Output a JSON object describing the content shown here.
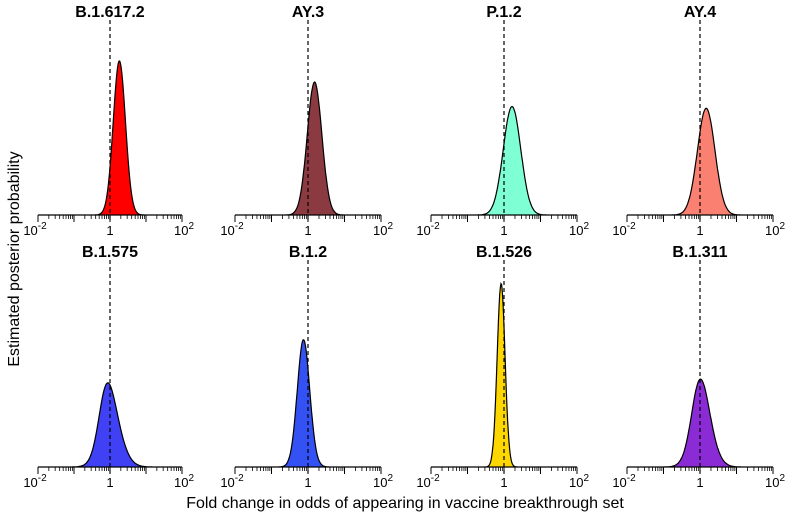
{
  "figure": {
    "ylabel": "Estimated posterior probability",
    "xlabel": "Fold change in odds of appearing in vaccine breakthrough set"
  },
  "axis": {
    "tick_base": "10",
    "tick_exponents": [
      "-2",
      "2"
    ],
    "tick_middle": "1"
  },
  "chart_data": [
    {
      "type": "area",
      "title": "B.1.617.2",
      "color": "#ff0000",
      "log_mean": 0.26,
      "sd": 0.17,
      "skew": 0.0,
      "peak": 0.88,
      "xlim": [
        0.01,
        100
      ],
      "reference_line": 1,
      "x_scale": "log"
    },
    {
      "type": "area",
      "title": "AY.3",
      "color": "#8b3a41",
      "log_mean": 0.18,
      "sd": 0.2,
      "skew": 0.0,
      "peak": 0.76,
      "xlim": [
        0.01,
        100
      ],
      "reference_line": 1,
      "x_scale": "log"
    },
    {
      "type": "area",
      "title": "P.1.2",
      "color": "#7fffd4",
      "log_mean": 0.22,
      "sd": 0.24,
      "skew": 0.0,
      "peak": 0.62,
      "xlim": [
        0.01,
        100
      ],
      "reference_line": 1,
      "x_scale": "log"
    },
    {
      "type": "area",
      "title": "AY.4",
      "color": "#fa8072",
      "log_mean": 0.17,
      "sd": 0.24,
      "skew": 0.0,
      "peak": 0.61,
      "xlim": [
        0.01,
        100
      ],
      "reference_line": 1,
      "x_scale": "log"
    },
    {
      "type": "area",
      "title": "B.1.575",
      "color": "#4040f5",
      "log_mean": -0.25,
      "sd": 0.36,
      "skew": 0.6,
      "peak": 0.45,
      "xlim": [
        0.01,
        100
      ],
      "reference_line": 1,
      "x_scale": "log"
    },
    {
      "type": "area",
      "title": "B.1.2",
      "color": "#3452f4",
      "log_mean": -0.2,
      "sd": 0.19,
      "skew": 0.25,
      "peak": 0.68,
      "xlim": [
        0.01,
        100
      ],
      "reference_line": 1,
      "x_scale": "log"
    },
    {
      "type": "area",
      "title": "B.1.526",
      "color": "#ffd700",
      "log_mean": -0.1,
      "sd": 0.11,
      "skew": 0.1,
      "peak": 0.98,
      "xlim": [
        0.01,
        100
      ],
      "reference_line": 1,
      "x_scale": "log"
    },
    {
      "type": "area",
      "title": "B.1.311",
      "color": "#8b2bd6",
      "log_mean": -0.15,
      "sd": 0.32,
      "skew": 0.45,
      "peak": 0.47,
      "xlim": [
        0.01,
        100
      ],
      "reference_line": 1,
      "x_scale": "log"
    }
  ]
}
